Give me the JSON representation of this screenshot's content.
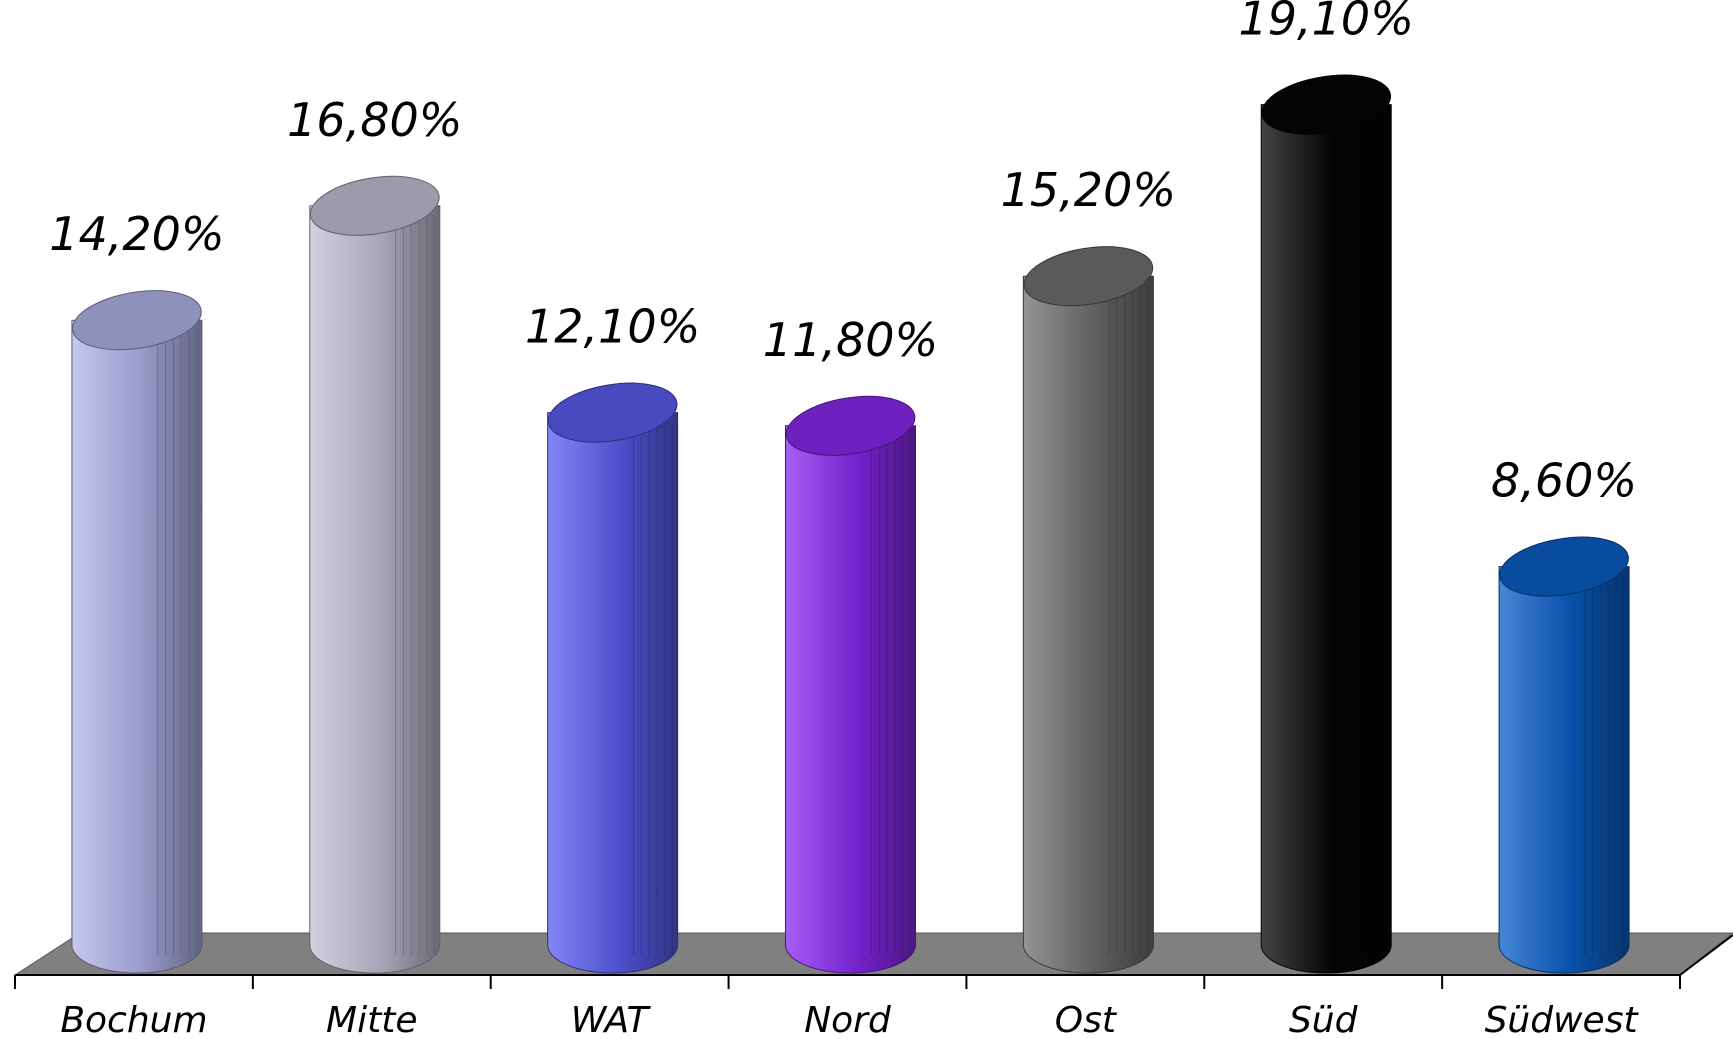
{
  "chart_data": {
    "type": "bar",
    "style": "3d-cylinder",
    "title": "",
    "xlabel": "",
    "ylabel": "",
    "categories": [
      "Bochum",
      "Mitte",
      "WAT",
      "Nord",
      "Ost",
      "Süd",
      "Südwest"
    ],
    "values": [
      14.2,
      16.8,
      12.1,
      11.8,
      15.2,
      19.1,
      8.6
    ],
    "data_labels": [
      "14,20%",
      "16,80%",
      "12,10%",
      "11,80%",
      "15,20%",
      "19,10%",
      "8,60%"
    ],
    "colors": [
      "#b3b5ec",
      "#c2c2d6",
      "#5a5ef0",
      "#8a28f0",
      "#707070",
      "#050505",
      "#0a5fc8"
    ],
    "ylim": [
      0,
      20
    ],
    "grid": false,
    "legend": "none",
    "floor_color": "#808080"
  }
}
